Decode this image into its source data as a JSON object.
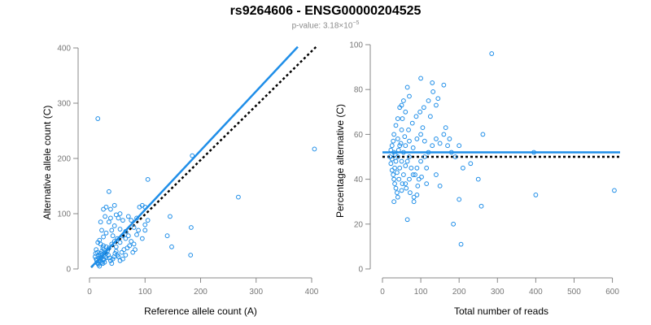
{
  "header": {
    "title": "rs9264606 - ENSG00000204525",
    "subtitle_prefix": "p-value: 3.18×10",
    "subtitle_exp": "−5"
  },
  "colors": {
    "points": "#1f8ee8",
    "fit": "#1f8ee8",
    "reference": "#000000",
    "axis": "#888888"
  },
  "chart_data": [
    {
      "type": "scatter",
      "xlabel": "Reference allele count (A)",
      "ylabel": "Alternative allele count (C)",
      "xlim": [
        0,
        400
      ],
      "ylim": [
        0,
        400
      ],
      "xticks": [
        0,
        100,
        200,
        300,
        400
      ],
      "yticks": [
        0,
        100,
        200,
        300,
        400
      ],
      "fit_line": {
        "x": [
          3,
          375
        ],
        "y": [
          3,
          402
        ]
      },
      "reference_line": {
        "x": [
          3,
          408
        ],
        "y": [
          3,
          402
        ]
      },
      "points": [
        [
          15,
          272
        ],
        [
          105,
          162
        ],
        [
          185,
          205
        ],
        [
          405,
          217
        ],
        [
          268,
          130
        ],
        [
          183,
          75
        ],
        [
          145,
          95
        ],
        [
          148,
          40
        ],
        [
          182,
          25
        ],
        [
          140,
          60
        ],
        [
          35,
          140
        ],
        [
          45,
          115
        ],
        [
          38,
          108
        ],
        [
          30,
          112
        ],
        [
          25,
          108
        ],
        [
          35,
          85
        ],
        [
          48,
          98
        ],
        [
          52,
          92
        ],
        [
          60,
          88
        ],
        [
          70,
          95
        ],
        [
          75,
          88
        ],
        [
          85,
          92
        ],
        [
          90,
          112
        ],
        [
          95,
          115
        ],
        [
          100,
          112
        ],
        [
          105,
          88
        ],
        [
          100,
          80
        ],
        [
          88,
          70
        ],
        [
          80,
          75
        ],
        [
          65,
          68
        ],
        [
          55,
          72
        ],
        [
          45,
          78
        ],
        [
          40,
          70
        ],
        [
          30,
          65
        ],
        [
          25,
          58
        ],
        [
          18,
          52
        ],
        [
          15,
          48
        ],
        [
          20,
          45
        ],
        [
          25,
          42
        ],
        [
          30,
          40
        ],
        [
          35,
          38
        ],
        [
          40,
          45
        ],
        [
          45,
          50
        ],
        [
          50,
          55
        ],
        [
          55,
          48
        ],
        [
          60,
          60
        ],
        [
          65,
          55
        ],
        [
          70,
          60
        ],
        [
          75,
          50
        ],
        [
          80,
          45
        ],
        [
          85,
          62
        ],
        [
          95,
          55
        ],
        [
          100,
          70
        ],
        [
          20,
          85
        ],
        [
          22,
          70
        ],
        [
          28,
          95
        ],
        [
          55,
          100
        ],
        [
          38,
          92
        ],
        [
          42,
          60
        ],
        [
          48,
          40
        ],
        [
          12,
          35
        ],
        [
          14,
          30
        ],
        [
          16,
          25
        ],
        [
          18,
          20
        ],
        [
          20,
          15
        ],
        [
          22,
          12
        ],
        [
          24,
          10
        ],
        [
          26,
          18
        ],
        [
          28,
          22
        ],
        [
          30,
          28
        ],
        [
          32,
          32
        ],
        [
          34,
          25
        ],
        [
          36,
          20
        ],
        [
          38,
          15
        ],
        [
          40,
          10
        ],
        [
          42,
          18
        ],
        [
          44,
          22
        ],
        [
          46,
          28
        ],
        [
          48,
          32
        ],
        [
          50,
          25
        ],
        [
          12,
          18
        ],
        [
          14,
          12
        ],
        [
          16,
          8
        ],
        [
          18,
          5
        ],
        [
          20,
          28
        ],
        [
          22,
          32
        ],
        [
          24,
          38
        ],
        [
          26,
          35
        ],
        [
          28,
          30
        ],
        [
          30,
          20
        ],
        [
          10,
          22
        ],
        [
          11,
          28
        ],
        [
          13,
          15
        ],
        [
          15,
          10
        ],
        [
          17,
          14
        ],
        [
          19,
          24
        ],
        [
          21,
          20
        ],
        [
          23,
          26
        ],
        [
          25,
          16
        ],
        [
          27,
          12
        ],
        [
          52,
          22
        ],
        [
          55,
          15
        ],
        [
          58,
          30
        ],
        [
          62,
          35
        ],
        [
          65,
          25
        ],
        [
          68,
          38
        ],
        [
          72,
          42
        ],
        [
          78,
          30
        ],
        [
          82,
          35
        ],
        [
          60,
          18
        ]
      ]
    },
    {
      "type": "scatter",
      "xlabel": "Total number of reads",
      "ylabel": "Percentage alternative (C)",
      "xlim": [
        0,
        620
      ],
      "ylim": [
        0,
        100
      ],
      "xticks": [
        0,
        100,
        200,
        300,
        400,
        500,
        600
      ],
      "yticks": [
        0,
        20,
        40,
        60,
        80,
        100
      ],
      "fit_line": {
        "x": [
          0,
          620
        ],
        "y": [
          52,
          52
        ]
      },
      "reference_line": {
        "x": [
          0,
          620
        ],
        "y": [
          50,
          50
        ]
      },
      "points": [
        [
          285,
          96
        ],
        [
          100,
          85
        ],
        [
          130,
          83
        ],
        [
          132,
          79
        ],
        [
          145,
          76
        ],
        [
          140,
          73
        ],
        [
          160,
          82
        ],
        [
          120,
          75
        ],
        [
          65,
          81
        ],
        [
          70,
          77
        ],
        [
          55,
          75
        ],
        [
          50,
          73
        ],
        [
          45,
          72
        ],
        [
          60,
          70
        ],
        [
          52,
          67
        ],
        [
          40,
          67
        ],
        [
          35,
          64
        ],
        [
          50,
          62
        ],
        [
          30,
          60
        ],
        [
          28,
          57
        ],
        [
          25,
          55
        ],
        [
          22,
          53
        ],
        [
          20,
          50
        ],
        [
          22,
          47
        ],
        [
          25,
          44
        ],
        [
          28,
          42
        ],
        [
          30,
          40
        ],
        [
          32,
          38
        ],
        [
          35,
          36
        ],
        [
          38,
          34
        ],
        [
          40,
          32
        ],
        [
          30,
          30
        ],
        [
          50,
          35
        ],
        [
          60,
          38
        ],
        [
          70,
          40
        ],
        [
          80,
          42
        ],
        [
          90,
          45
        ],
        [
          100,
          48
        ],
        [
          110,
          50
        ],
        [
          120,
          52
        ],
        [
          130,
          55
        ],
        [
          140,
          58
        ],
        [
          150,
          56
        ],
        [
          160,
          60
        ],
        [
          170,
          55
        ],
        [
          180,
          52
        ],
        [
          190,
          50
        ],
        [
          200,
          55
        ],
        [
          210,
          45
        ],
        [
          230,
          47
        ],
        [
          105,
          63
        ],
        [
          110,
          57
        ],
        [
          125,
          68
        ],
        [
          165,
          63
        ],
        [
          175,
          58
        ],
        [
          262,
          60
        ],
        [
          395,
          52
        ],
        [
          400,
          33
        ],
        [
          605,
          35
        ],
        [
          200,
          31
        ],
        [
          250,
          40
        ],
        [
          185,
          20
        ],
        [
          205,
          11
        ],
        [
          258,
          28
        ],
        [
          65,
          22
        ],
        [
          82,
          30
        ],
        [
          90,
          33
        ],
        [
          115,
          38
        ],
        [
          140,
          42
        ],
        [
          150,
          37
        ],
        [
          40,
          58
        ],
        [
          45,
          55
        ],
        [
          55,
          52
        ],
        [
          65,
          48
        ],
        [
          75,
          45
        ],
        [
          85,
          42
        ],
        [
          95,
          40
        ],
        [
          35,
          48
        ],
        [
          45,
          45
        ],
        [
          55,
          42
        ],
        [
          30,
          52
        ],
        [
          40,
          50
        ],
        [
          50,
          48
        ],
        [
          60,
          46
        ],
        [
          70,
          50
        ],
        [
          80,
          54
        ],
        [
          90,
          58
        ],
        [
          100,
          60
        ],
        [
          60,
          55
        ],
        [
          70,
          57
        ],
        [
          25,
          49
        ],
        [
          33,
          51
        ],
        [
          42,
          53
        ],
        [
          48,
          56
        ],
        [
          58,
          59
        ],
        [
          68,
          62
        ],
        [
          78,
          65
        ],
        [
          88,
          68
        ],
        [
          98,
          70
        ],
        [
          108,
          72
        ],
        [
          32,
          45
        ],
        [
          38,
          43
        ],
        [
          43,
          40
        ],
        [
          52,
          38
        ],
        [
          62,
          36
        ],
        [
          72,
          34
        ],
        [
          82,
          32
        ],
        [
          92,
          37
        ],
        [
          102,
          41
        ],
        [
          115,
          45
        ]
      ]
    }
  ]
}
